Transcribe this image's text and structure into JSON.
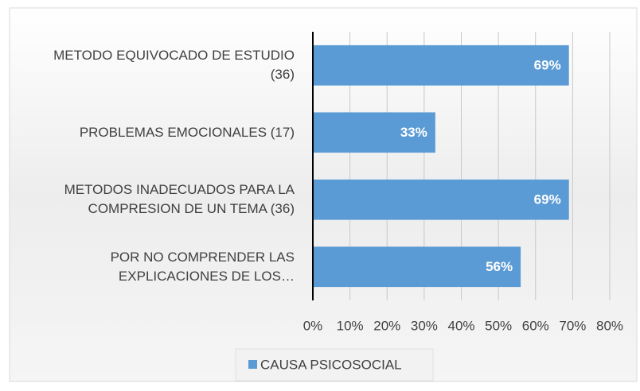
{
  "chart_data": {
    "type": "bar",
    "orientation": "horizontal",
    "categories": [
      "METODO EQUIVOCADO DE ESTUDIO (36)",
      "PROBLEMAS EMOCIONALES (17)",
      "METODOS INADECUADOS PARA LA COMPRESION DE UN TEMA (36)",
      "POR NO COMPRENDER LAS EXPLICACIONES DE LOS…"
    ],
    "series": [
      {
        "name": "CAUSA PSICOSOCIAL",
        "color": "#5b9bd5",
        "values": [
          69,
          33,
          69,
          56
        ],
        "value_labels": [
          "69%",
          "33%",
          "69%",
          "56%"
        ]
      }
    ],
    "xlim": [
      0,
      80
    ],
    "xticks": [
      {
        "value": 0,
        "label": "0%"
      },
      {
        "value": 10,
        "label": "10%"
      },
      {
        "value": 20,
        "label": "20%"
      },
      {
        "value": 30,
        "label": "30%"
      },
      {
        "value": 40,
        "label": "40%"
      },
      {
        "value": 50,
        "label": "50%"
      },
      {
        "value": 60,
        "label": "60%"
      },
      {
        "value": 70,
        "label": "70%"
      },
      {
        "value": 80,
        "label": "80%"
      }
    ],
    "grid": true,
    "legend": "bottom"
  }
}
